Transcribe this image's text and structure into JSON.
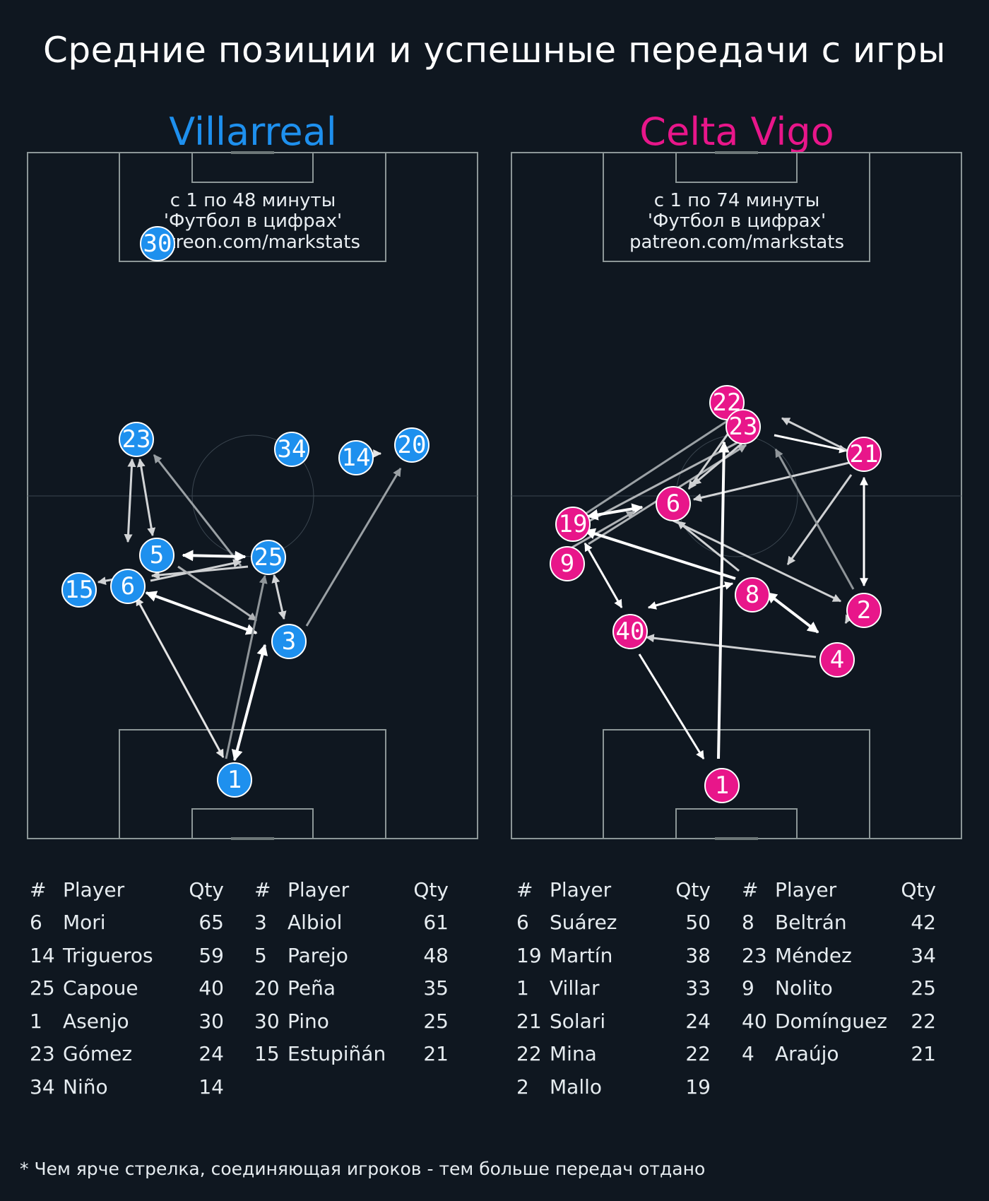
{
  "title": "Средние позиции и успешные передачи с игры",
  "footnote": "* Чем ярче стрелка, соединяющая игроков - тем больше передач отдано",
  "colors": {
    "background": "#0f1720",
    "villarreal": "#1e90ee",
    "celta": "#e8168a",
    "pitch_lines": "#8c9697"
  },
  "teams": [
    {
      "name": "Villarreal",
      "color": "#1e90ee",
      "info": [
        "с 1 по 48 минуты",
        "'Футбол в цифрах'",
        "patreon.com/markstats"
      ],
      "players": [
        {
          "num": "30"
        },
        {
          "num": "23"
        },
        {
          "num": "34"
        },
        {
          "num": "14"
        },
        {
          "num": "20"
        },
        {
          "num": "5"
        },
        {
          "num": "25"
        },
        {
          "num": "15"
        },
        {
          "num": "6"
        },
        {
          "num": "3"
        },
        {
          "num": "1"
        }
      ],
      "table_headers": {
        "num": "#",
        "player": "Player",
        "qty": "Qty"
      },
      "table_left": [
        {
          "num": "6",
          "player": "Mori",
          "qty": "65"
        },
        {
          "num": "14",
          "player": "Trigueros",
          "qty": "59"
        },
        {
          "num": "25",
          "player": "Capoue",
          "qty": "40"
        },
        {
          "num": "1",
          "player": "Asenjo",
          "qty": "30"
        },
        {
          "num": "23",
          "player": "Gómez",
          "qty": "24"
        },
        {
          "num": "34",
          "player": "Niño",
          "qty": "14"
        }
      ],
      "table_right": [
        {
          "num": "3",
          "player": "Albiol",
          "qty": "61"
        },
        {
          "num": "5",
          "player": "Parejo",
          "qty": "48"
        },
        {
          "num": "20",
          "player": "Peña",
          "qty": "35"
        },
        {
          "num": "30",
          "player": "Pino",
          "qty": "25"
        },
        {
          "num": "15",
          "player": "Estupiñán",
          "qty": "21"
        }
      ]
    },
    {
      "name": "Celta Vigo",
      "color": "#e8168a",
      "info": [
        "с 1 по 74 минуты",
        "'Футбол в цифрах'",
        "patreon.com/markstats"
      ],
      "players": [
        {
          "num": "22"
        },
        {
          "num": "23"
        },
        {
          "num": "21"
        },
        {
          "num": "6"
        },
        {
          "num": "19"
        },
        {
          "num": "9"
        },
        {
          "num": "8"
        },
        {
          "num": "2"
        },
        {
          "num": "40"
        },
        {
          "num": "4"
        },
        {
          "num": "1"
        }
      ],
      "table_headers": {
        "num": "#",
        "player": "Player",
        "qty": "Qty"
      },
      "table_left": [
        {
          "num": "6",
          "player": "Suárez",
          "qty": "50"
        },
        {
          "num": "19",
          "player": "Martín",
          "qty": "38"
        },
        {
          "num": "1",
          "player": "Villar",
          "qty": "33"
        },
        {
          "num": "21",
          "player": "Solari",
          "qty": "24"
        },
        {
          "num": "22",
          "player": "Mina",
          "qty": "22"
        },
        {
          "num": "2",
          "player": "Mallo",
          "qty": "19"
        }
      ],
      "table_right": [
        {
          "num": "8",
          "player": "Beltrán",
          "qty": "42"
        },
        {
          "num": "23",
          "player": "Méndez",
          "qty": "34"
        },
        {
          "num": "9",
          "player": "Nolito",
          "qty": "25"
        },
        {
          "num": "40",
          "player": "Domínguez",
          "qty": "22"
        },
        {
          "num": "4",
          "player": "Araújo",
          "qty": "21"
        }
      ]
    }
  ]
}
